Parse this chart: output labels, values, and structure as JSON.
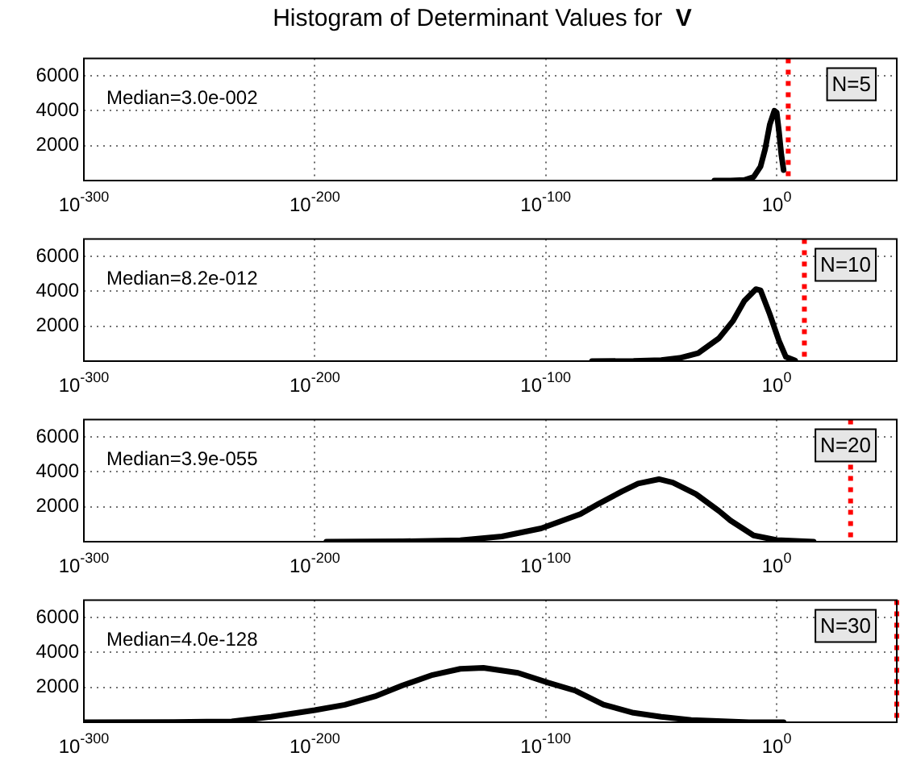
{
  "chart_data": [
    {
      "type": "line",
      "title": "Histogram of Determinant Values for V",
      "x": [
        1e-27,
        1e-20,
        1e-14,
        1e-10,
        1e-07,
        1e-05,
        0.001,
        0.1,
        1,
        10.0,
        100.0,
        1000.0
      ],
      "values": [
        0,
        0,
        30,
        200,
        800,
        1800,
        3200,
        4000,
        3900,
        2800,
        1500,
        600
      ],
      "color": "#000000",
      "xlim": [
        1e-300,
        1e+52
      ],
      "xticks": [
        {
          "value": 1e-300,
          "label": "10$^{-300}$"
        },
        {
          "value": 1e-200,
          "label": "10$^{-200}$"
        },
        {
          "value": 1e-100,
          "label": "10$^{-100}$"
        },
        {
          "value": 1,
          "label": "10$^{0}$"
        }
      ],
      "ylim": [
        0,
        7000
      ],
      "yticks": [
        2000,
        4000,
        6000
      ],
      "log": "x",
      "grid": true,
      "marker": "none",
      "ref_lines": [
        {
          "axis": "x",
          "value": 100000.0,
          "color": "#ff0000",
          "line_style": "dotted"
        }
      ],
      "annotations": [
        "Median=3.0e-002",
        "N=5"
      ]
    },
    {
      "type": "line",
      "x": [
        1e-80,
        1e-62,
        1e-50,
        1e-42,
        1e-34,
        1e-25,
        1e-19,
        1e-14,
        1e-09,
        1e-07,
        0.001,
        10.0,
        10000.0,
        100000000.0
      ],
      "values": [
        0,
        10,
        60,
        180,
        460,
        1310,
        2290,
        3450,
        4120,
        4060,
        2690,
        1160,
        240,
        30
      ],
      "color": "#000000",
      "xlim": [
        1e-300,
        1e+52
      ],
      "xticks": [
        {
          "value": 1e-300,
          "label": "10$^{-300}$"
        },
        {
          "value": 1e-200,
          "label": "10$^{-200}$"
        },
        {
          "value": 1e-100,
          "label": "10$^{-100}$"
        },
        {
          "value": 1,
          "label": "10$^{0}$"
        }
      ],
      "ylim": [
        0,
        7000
      ],
      "yticks": [
        2000,
        4000,
        6000
      ],
      "log": "x",
      "grid": true,
      "marker": "none",
      "ref_lines": [
        {
          "axis": "x",
          "value": 1000000000000.0,
          "color": "#ff0000",
          "line_style": "dotted"
        }
      ],
      "annotations": [
        "Median=8.2e-012",
        "N=10"
      ]
    },
    {
      "type": "line",
      "x": [
        1e-195,
        1e-162,
        1e-137,
        1e-119,
        1e-102,
        1e-85,
        1e-77,
        1e-67,
        1e-60,
        1e-51,
        1e-45,
        1e-35,
        1e-25,
        1e-20,
        1e-10,
        1,
        1e+16
      ],
      "values": [
        0,
        20,
        80,
        300,
        760,
        1580,
        2180,
        2880,
        3330,
        3580,
        3390,
        2730,
        1760,
        1210,
        360,
        90,
        0
      ],
      "color": "#000000",
      "xlim": [
        1e-300,
        1e+52
      ],
      "xticks": [
        {
          "value": 1e-300,
          "label": "10$^{-300}$"
        },
        {
          "value": 1e-200,
          "label": "10$^{-200}$"
        },
        {
          "value": 1e-100,
          "label": "10$^{-100}$"
        },
        {
          "value": 1,
          "label": "10$^{0}$"
        }
      ],
      "ylim": [
        0,
        7000
      ],
      "yticks": [
        2000,
        4000,
        6000
      ],
      "log": "x",
      "grid": true,
      "marker": "none",
      "ref_lines": [
        {
          "axis": "x",
          "value": 1e+32,
          "color": "#ff0000",
          "line_style": "dotted"
        }
      ],
      "annotations": [
        "Median=3.9e-055",
        "N=20"
      ]
    },
    {
      "type": "line",
      "x": [
        1e-300,
        1e-261,
        1e-236,
        1e-219,
        1e-200,
        1e-187,
        1e-174,
        1e-162,
        1e-149,
        1e-137,
        1e-127,
        1e-112,
        1e-99,
        1e-87,
        1e-75,
        1e-62,
        1e-50,
        1e-37,
        1e-12,
        1000.0
      ],
      "values": [
        0,
        10,
        50,
        310,
        690,
        1000,
        1480,
        2110,
        2710,
        3060,
        3120,
        2830,
        2270,
        1800,
        1010,
        540,
        310,
        130,
        0,
        0
      ],
      "color": "#000000",
      "xlim": [
        1e-300,
        1e+52
      ],
      "xticks": [
        {
          "value": 1e-300,
          "label": "10$^{-300}$"
        },
        {
          "value": 1e-200,
          "label": "10$^{-200}$"
        },
        {
          "value": 1e-100,
          "label": "10$^{-100}$"
        },
        {
          "value": 1,
          "label": "10$^{0}$"
        }
      ],
      "ylim": [
        0,
        7000
      ],
      "yticks": [
        2000,
        4000,
        6000
      ],
      "log": "x",
      "grid": true,
      "marker": "none",
      "ref_lines": [
        {
          "axis": "x",
          "value": 1e+52,
          "color": "#ff0000",
          "line_style": "dotted"
        }
      ],
      "annotations": [
        "Median=4.0e-128",
        "N=30"
      ]
    }
  ]
}
